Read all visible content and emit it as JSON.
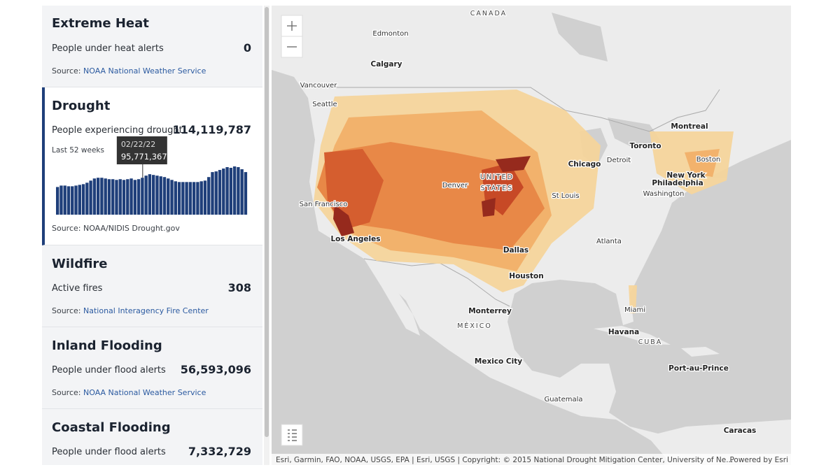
{
  "panel": {
    "cards": [
      {
        "title": "Extreme Heat",
        "metric_label": "People under heat alerts",
        "metric_value": "0",
        "source_prefix": "Source:",
        "source": "NOAA National Weather Service"
      },
      {
        "title": "Drought",
        "metric_label": "People experiencing drought",
        "metric_value": "114,119,787",
        "sparkline": {
          "label": "Last 52 weeks",
          "values": [
            71800000,
            75500000,
            75500000,
            73700000,
            73700000,
            75500000,
            77400000,
            79200000,
            82900000,
            88400000,
            93900000,
            95800000,
            95800000,
            93900000,
            92100000,
            92100000,
            90200000,
            92100000,
            90200000,
            92100000,
            93900000,
            90200000,
            92100000,
            95771367,
            101300000,
            105000000,
            103100000,
            101300000,
            99500000,
            97600000,
            93900000,
            90200000,
            86600000,
            84700000,
            84700000,
            84700000,
            84700000,
            84700000,
            84700000,
            86600000,
            88400000,
            97600000,
            110500000,
            112300000,
            116000000,
            119700000,
            123400000,
            121600000,
            125200000,
            123400000,
            117900000,
            110500000
          ],
          "tooltip": {
            "date": "02/22/22",
            "value": "95,771,367"
          }
        },
        "source": "Source: NOAA/NIDIS Drought.gov"
      },
      {
        "title": "Wildfire",
        "metric_label": "Active fires",
        "metric_value": "308",
        "source_prefix": "Source:",
        "source": "National Interagency Fire Center"
      },
      {
        "title": "Inland Flooding",
        "metric_label": "People under flood alerts",
        "metric_value": "56,593,096",
        "source_prefix": "Source:",
        "source": "NOAA National Weather Service"
      },
      {
        "title": "Coastal Flooding",
        "metric_label": "People under flood alerts",
        "metric_value": "7,332,729"
      }
    ]
  },
  "map": {
    "labels": [
      "CANADA",
      "Edmonton",
      "Calgary",
      "Vancouver",
      "Seattle",
      "Montreal",
      "Toronto",
      "Detroit",
      "Chicago",
      "Boston",
      "New York",
      "Philadelphia",
      "Washington",
      "Denver",
      "UNITED",
      "STATES",
      "St Louis",
      "San Francisco",
      "Los Angeles",
      "Atlanta",
      "Dallas",
      "Houston",
      "Miami",
      "Monterrey",
      "MÉXICO",
      "Havana",
      "CUBA",
      "Mexico City",
      "Port-au-Prince",
      "Guatemala",
      "Caracas"
    ],
    "attribution": "Esri, Garmin, FAO, NOAA, USGS, EPA | Esri, USGS | Copyright: © 2015 National Drought Mitigation Center, University of Ne...",
    "powered_by": "Powered by Esri"
  }
}
